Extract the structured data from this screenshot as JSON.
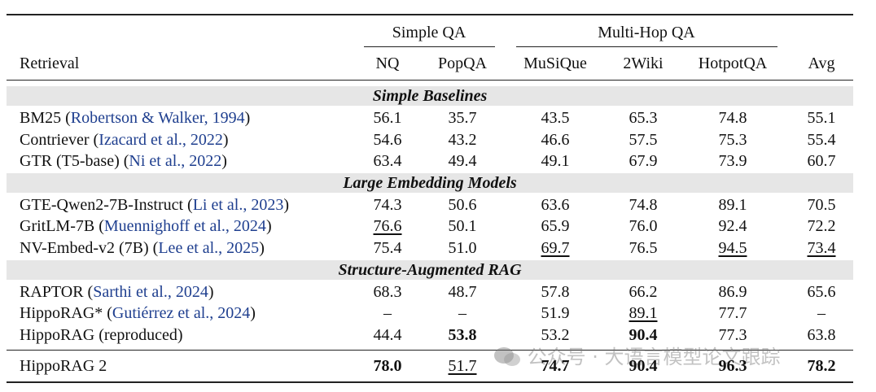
{
  "header": {
    "groups": [
      "Simple QA",
      "Multi-Hop QA"
    ],
    "columns": [
      "Retrieval",
      "NQ",
      "PopQA",
      "MuSiQue",
      "2Wiki",
      "HotpotQA",
      "Avg"
    ]
  },
  "sections": [
    {
      "title": "Simple Baselines",
      "rows": [
        {
          "label": [
            {
              "text": "BM25 ("
            },
            {
              "text": "Robertson & Walker, 1994",
              "cite": true
            },
            {
              "text": ")"
            }
          ],
          "cells": [
            "56.1",
            "35.7",
            "43.5",
            "65.3",
            "74.8",
            "55.1"
          ]
        },
        {
          "label": [
            {
              "text": "Contriever ("
            },
            {
              "text": "Izacard et al., 2022",
              "cite": true
            },
            {
              "text": ")"
            }
          ],
          "cells": [
            "54.6",
            "43.2",
            "46.6",
            "57.5",
            "75.3",
            "55.4"
          ]
        },
        {
          "label": [
            {
              "text": "GTR (T5-base) ("
            },
            {
              "text": "Ni et al., 2022",
              "cite": true
            },
            {
              "text": ")"
            }
          ],
          "cells": [
            "63.4",
            "49.4",
            "49.1",
            "67.9",
            "73.9",
            "60.7"
          ]
        }
      ]
    },
    {
      "title": "Large Embedding Models",
      "rows": [
        {
          "label": [
            {
              "text": "GTE-Qwen2-7B-Instruct ("
            },
            {
              "text": "Li et al., 2023",
              "cite": true
            },
            {
              "text": ")"
            }
          ],
          "cells": [
            "74.3",
            "50.6",
            "63.6",
            "74.8",
            "89.1",
            "70.5"
          ]
        },
        {
          "label": [
            {
              "text": "GritLM-7B ("
            },
            {
              "text": "Muennighoff et al., 2024",
              "cite": true
            },
            {
              "text": ")"
            }
          ],
          "cells": [
            {
              "text": "76.6",
              "style": "underline"
            },
            "50.1",
            "65.9",
            "76.0",
            "92.4",
            "72.2"
          ]
        },
        {
          "label": [
            {
              "text": "NV-Embed-v2 (7B) ("
            },
            {
              "text": "Lee et al., 2025",
              "cite": true
            },
            {
              "text": ")"
            }
          ],
          "cells": [
            "75.4",
            "51.0",
            {
              "text": "69.7",
              "style": "underline"
            },
            "76.5",
            {
              "text": "94.5",
              "style": "underline"
            },
            {
              "text": "73.4",
              "style": "underline"
            }
          ]
        }
      ]
    },
    {
      "title": "Structure-Augmented RAG",
      "rows": [
        {
          "label": [
            {
              "text": "RAPTOR ("
            },
            {
              "text": "Sarthi et al., 2024",
              "cite": true
            },
            {
              "text": ")"
            }
          ],
          "cells": [
            "68.3",
            "48.7",
            "57.8",
            "66.2",
            "86.9",
            "65.6"
          ]
        },
        {
          "label": [
            {
              "text": "HippoRAG* ("
            },
            {
              "text": "Gutiérrez et al., 2024",
              "cite": true
            },
            {
              "text": ")"
            }
          ],
          "cells": [
            "–",
            "–",
            "51.9",
            {
              "text": "89.1",
              "style": "underline"
            },
            "77.7",
            "–"
          ]
        },
        {
          "label": [
            {
              "text": "HippoRAG (reproduced)"
            }
          ],
          "cells": [
            "44.4",
            {
              "text": "53.8",
              "style": "bold"
            },
            "53.2",
            {
              "text": "90.4",
              "style": "bold"
            },
            "77.3",
            "63.8"
          ]
        }
      ]
    }
  ],
  "final_row": {
    "label": [
      {
        "text": "HippoRAG 2"
      }
    ],
    "cells": [
      {
        "text": "78.0",
        "style": "bold"
      },
      {
        "text": "51.7",
        "style": "underline"
      },
      {
        "text": "74.7",
        "style": "bold"
      },
      {
        "text": "90.4",
        "style": "bold"
      },
      {
        "text": "96.3",
        "style": "bold"
      },
      {
        "text": "78.2",
        "style": "bold"
      }
    ]
  },
  "watermark": "公众号 · 大语言模型论文跟踪"
}
